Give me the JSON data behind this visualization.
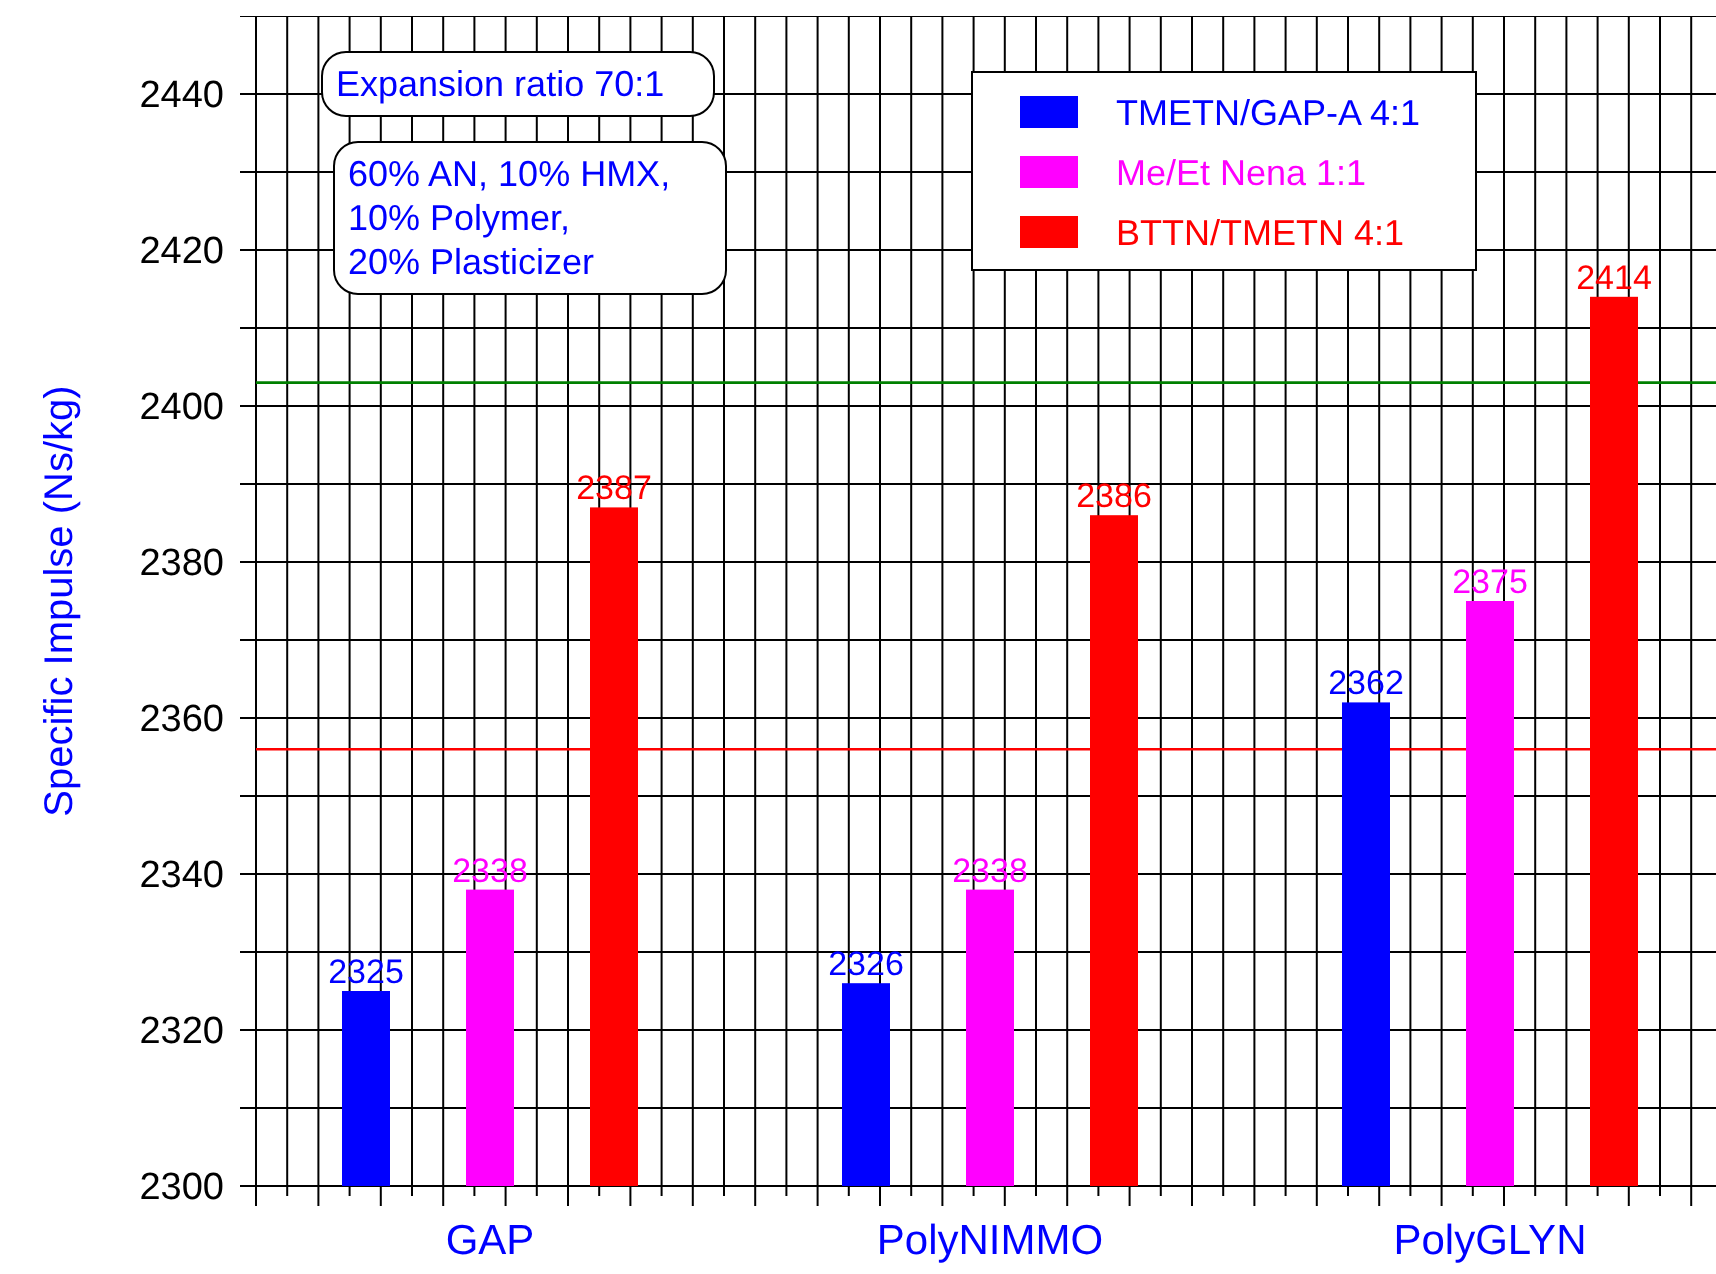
{
  "chart_data": {
    "type": "bar",
    "ylabel": "Specific Impulse (Ns/kg)",
    "categories": [
      "GAP",
      "PolyNIMMO",
      "PolyGLYN"
    ],
    "series": [
      {
        "name": "TMETN/GAP-A 4:1",
        "color": "#0000ff",
        "values": [
          2325,
          2326,
          2362
        ]
      },
      {
        "name": "Me/Et Nena 1:1",
        "color": "#ff00ff",
        "values": [
          2338,
          2338,
          2375
        ]
      },
      {
        "name": "BTTN/TMETN 4:1",
        "color": "#ff0000",
        "values": [
          2387,
          2386,
          2414
        ]
      }
    ],
    "ylim": [
      2300,
      2450
    ],
    "yticks": [
      2300,
      {
        "value": 2310,
        "label": null
      },
      2320,
      {
        "value": 2330,
        "label": null
      },
      2340,
      {
        "value": 2350,
        "label": null
      },
      2360,
      {
        "value": 2370,
        "label": null
      },
      2380,
      {
        "value": 2390,
        "label": null
      },
      2400,
      {
        "value": 2410,
        "label": null
      },
      2420,
      {
        "value": 2430,
        "label": null
      },
      2440
    ],
    "ref_lines": [
      {
        "axis": "y",
        "value": 2403,
        "color": "#008000"
      },
      {
        "axis": "y",
        "value": 2356,
        "color": "#ff0000"
      }
    ],
    "annotations": [
      "Expansion ratio 70:1",
      "60% AN, 10% HMX,\n10% Polymer,\n20% Plasticizer"
    ],
    "data_labels": true,
    "grid": true,
    "legend": "top"
  }
}
